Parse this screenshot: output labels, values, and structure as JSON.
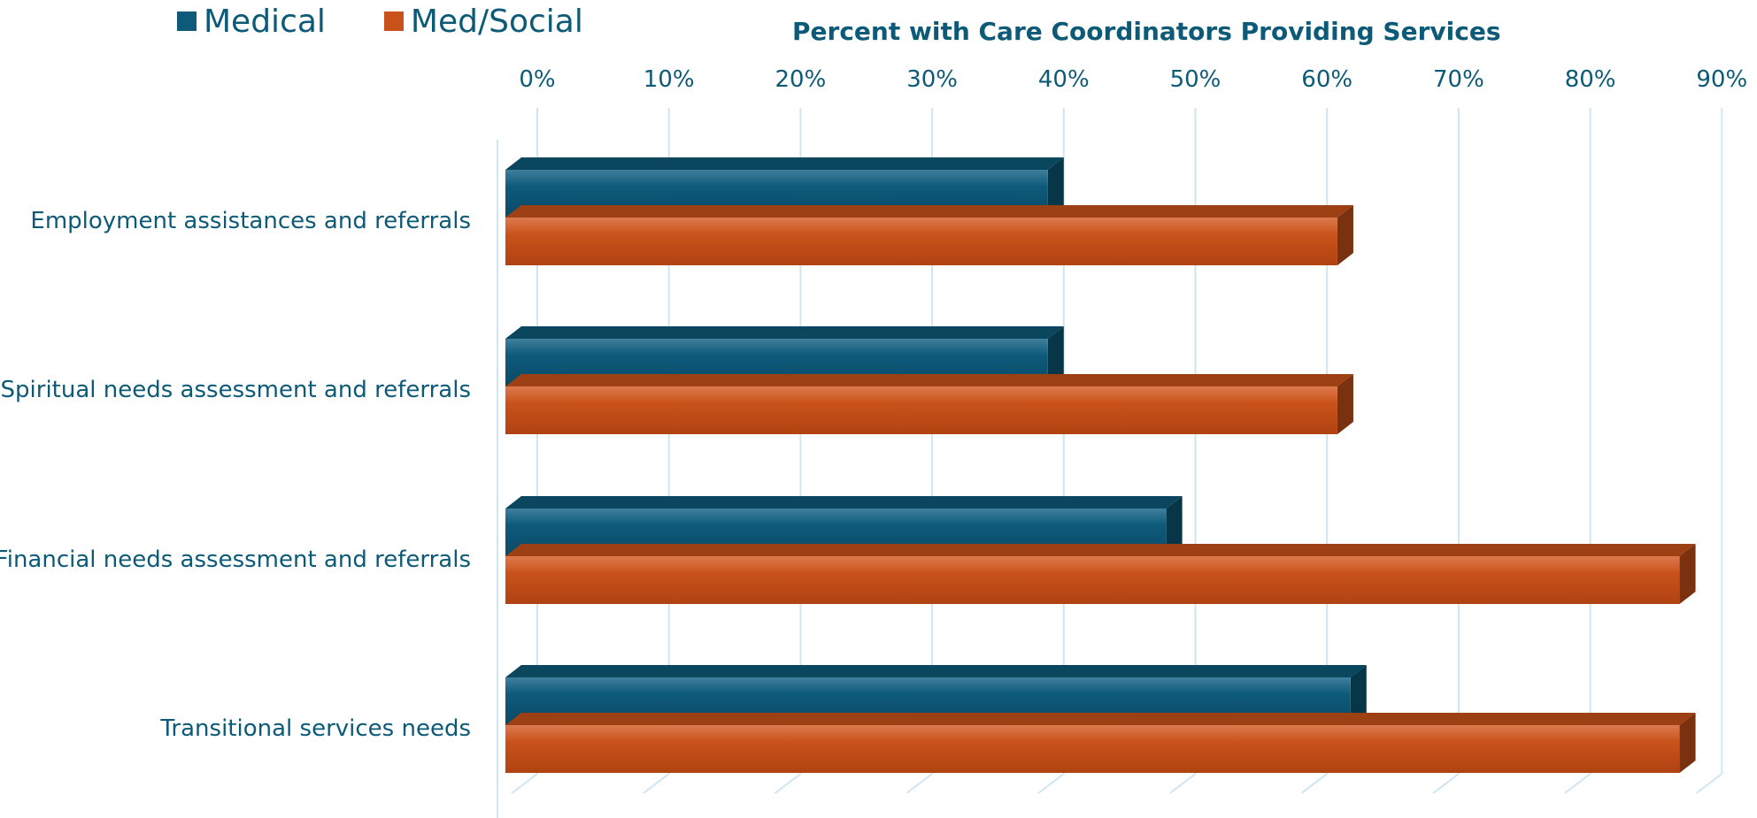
{
  "chart_data": {
    "type": "bar",
    "orientation": "horizontal",
    "style": "3d-clustered",
    "title": "Percent with Care Coordinators Providing Services",
    "xlabel": "",
    "ylabel": "",
    "xlim": [
      0,
      90
    ],
    "x_ticks": [
      "0%",
      "10%",
      "20%",
      "30%",
      "40%",
      "50%",
      "60%",
      "70%",
      "80%",
      "90%"
    ],
    "x_tick_values": [
      0,
      10,
      20,
      30,
      40,
      50,
      60,
      70,
      80,
      90
    ],
    "x_axis_position": "top",
    "grid": true,
    "legend_position": "top-left",
    "categories": [
      "Employment assistances and referrals",
      "Spiritual needs assessment and referrals",
      "Financial needs assessment and referrals",
      "Transitional services needs"
    ],
    "series": [
      {
        "name": "Medical",
        "color": "#0e5a7a",
        "values": [
          40,
          40,
          49,
          63
        ]
      },
      {
        "name": "Med/Social",
        "color": "#c9521a",
        "values": [
          62,
          62,
          88,
          88
        ]
      }
    ]
  }
}
